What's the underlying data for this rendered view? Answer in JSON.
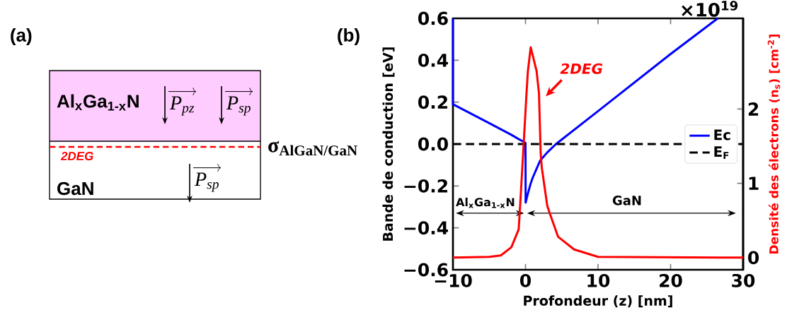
{
  "chart_data": [
    {
      "type": "other",
      "title": "(a)",
      "annotations": [
        "Al$_{x}$Ga$_{1-x}$N",
        "P$_{pz}$",
        "P$_{sp}$",
        "σ$_{AlGaN/GaN}$",
        "2DEG",
        "GaN",
        "P$_{sp}$"
      ]
    },
    {
      "type": "line",
      "title": "(b)",
      "xlabel": "Profondeur (z) [nm]",
      "ylabel": "Bande de conduction [eV]",
      "y2label": "Densité des électrons (n$_{s}$) [cm$^{-2}$]",
      "xlim": [
        -10,
        30
      ],
      "ylim": [
        -0.6,
        0.6
      ],
      "y2lim": [
        -0.163,
        3.22
      ],
      "xticks": [
        {
          "value": -10,
          "label": "−10"
        },
        0,
        10,
        20,
        30
      ],
      "yticks": [
        {
          "value": -0.6,
          "label": "−0.6"
        },
        {
          "value": -0.4,
          "label": "−0.4"
        },
        {
          "value": -0.2,
          "label": "−0.2"
        },
        {
          "value": 0,
          "label": "0.0"
        },
        0.2,
        0.4,
        0.6
      ],
      "y2ticks": [
        0,
        1,
        2
      ],
      "legend": "right",
      "annotations": [
        "2DEG",
        "Al$_{x}$Ga$_{1-x}$N",
        "GaN",
        "×10$^{19}$"
      ],
      "series": [
        {
          "name": "Ec",
          "color": "#0000ff",
          "line_style": "solid",
          "x": [
            -10,
            -10,
            -5,
            -2,
            -1,
            -0.2,
            0,
            0.02,
            0.3,
            0.7,
            1,
            1.5,
            2,
            2.5,
            3,
            4.2,
            10,
            20,
            26.5
          ],
          "values": [
            0.6,
            0.19,
            0.1,
            0.045,
            0.025,
            0.01,
            0.005,
            -0.28,
            -0.24,
            -0.19,
            -0.16,
            -0.12,
            -0.08,
            -0.06,
            -0.04,
            0,
            0.157,
            0.43,
            0.6
          ]
        },
        {
          "name": "E$_{F}$",
          "color": "#000000",
          "line_style": "dashed",
          "x": [
            -10,
            30
          ],
          "values": [
            0,
            0
          ]
        },
        {
          "color": "#ff0000",
          "line_style": "solid",
          "axis": "y2",
          "x": [
            -10,
            -5,
            -3.4,
            -1.95,
            -0.94,
            -0.74,
            -0.32,
            0.14,
            0.33,
            0.72,
            1.53,
            1.86,
            2.09,
            2.25,
            3.0,
            3.3,
            4.5,
            6.7,
            10,
            30
          ],
          "values": [
            0,
            0.01,
            0.03,
            0.14,
            0.38,
            0.7,
            1.41,
            2.21,
            2.51,
            2.83,
            2.51,
            2.21,
            1.41,
            1.21,
            0.7,
            0.61,
            0.28,
            0.11,
            0.01,
            0
          ]
        }
      ]
    }
  ]
}
